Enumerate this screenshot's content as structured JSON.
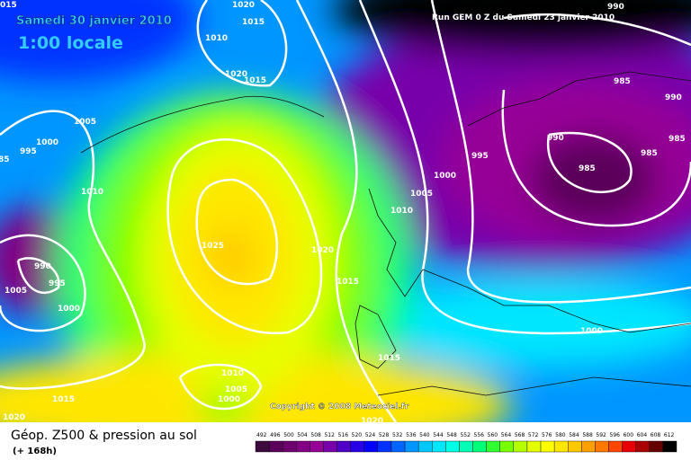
{
  "header": {
    "date": "Samedi 30 janvier 2010",
    "time": "1:00 locale",
    "run": "Run GEM 0 Z du Samedi 23 janvier 2010"
  },
  "copyright": "Copyright © 2008 Meteociel.fr",
  "footer": {
    "title": "Géop. Z500 & pression au sol",
    "lead": "(+ 168h)"
  },
  "legend": {
    "levels": [
      "492",
      "496",
      "500",
      "504",
      "508",
      "512",
      "516",
      "520",
      "524",
      "528",
      "532",
      "536",
      "540",
      "544",
      "548",
      "552",
      "556",
      "560",
      "564",
      "568",
      "572",
      "576",
      "580",
      "584",
      "588",
      "592",
      "596",
      "600",
      "604",
      "608",
      "612"
    ],
    "colors": [
      "#3c0a3c",
      "#5a005a",
      "#6e006e",
      "#820082",
      "#960096",
      "#7800aa",
      "#5000c8",
      "#2800e6",
      "#0000ff",
      "#0032ff",
      "#0064ff",
      "#0096ff",
      "#00c8ff",
      "#00e6ff",
      "#00ffe6",
      "#00ffb4",
      "#00ff78",
      "#32ff32",
      "#78ff00",
      "#b4ff00",
      "#e6ff00",
      "#ffff00",
      "#ffe600",
      "#ffc800",
      "#ffa000",
      "#ff7800",
      "#ff4600",
      "#e60000",
      "#aa0000",
      "#640000",
      "#000000"
    ]
  },
  "isobar_labels": [
    "1020",
    "1015",
    "1010",
    "1020",
    "1015",
    "1005",
    "1000",
    "995",
    "85",
    "1010",
    "990",
    "995",
    "1005",
    "1000",
    "1025",
    "1020",
    "1015",
    "1010",
    "1005",
    "1000",
    "995",
    "990",
    "985",
    "985",
    "985",
    "990",
    "985",
    "990",
    "1000",
    "1015",
    "1010",
    "1005",
    "1000",
    "1015",
    "1020",
    "1020",
    "015"
  ]
}
